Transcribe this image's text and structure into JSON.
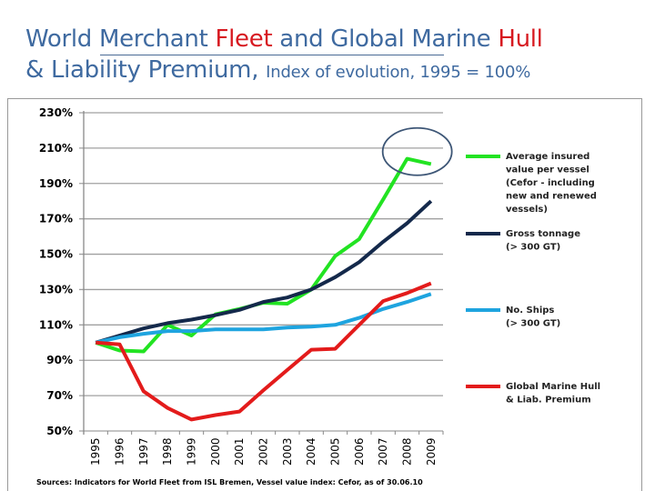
{
  "header": {
    "title_line1_parts": [
      "World Merchant ",
      "Fleet",
      " and Global Marine ",
      "Hull"
    ],
    "title_line2": "& Liability Premium,",
    "subtitle": "Index of evolution, 1995 = 100%"
  },
  "chart_data": {
    "type": "line",
    "title": "",
    "xlabel": "",
    "ylabel": "",
    "x": [
      "1995",
      "1996",
      "1997",
      "1998",
      "1999",
      "2000",
      "2001",
      "2002",
      "2003",
      "2004",
      "2005",
      "2006",
      "2007",
      "2008",
      "2009"
    ],
    "ylim": [
      50,
      230
    ],
    "yticks": [
      50,
      70,
      90,
      110,
      130,
      150,
      170,
      190,
      210,
      230
    ],
    "ytick_labels": [
      "50%",
      "70%",
      "90%",
      "110%",
      "130%",
      "150%",
      "170%",
      "190%",
      "210%",
      "230%"
    ],
    "grid": true,
    "legend_position": "right",
    "series": [
      {
        "name": "Average insured value per vessel (Cefor - including new and renewed vessels)",
        "legend_lines": [
          "Average insured",
          "value per vessel",
          "(Cefor - including",
          "new and renewed",
          "vessels)"
        ],
        "color": "#22e322",
        "values": [
          100,
          95.5,
          95,
          110,
          104,
          116,
          119,
          122.5,
          122,
          130,
          149,
          158.5,
          181,
          204,
          201
        ]
      },
      {
        "name": "Gross tonnage (> 300 GT)",
        "legend_lines": [
          "Gross tonnage",
          "(> 300 GT)"
        ],
        "color": "#14294b",
        "values": [
          100,
          104,
          108,
          111,
          113,
          115.5,
          118.5,
          123,
          125.5,
          130,
          137,
          145.5,
          157,
          167.5,
          180
        ]
      },
      {
        "name": "No. Ships (> 300 GT)",
        "legend_lines": [
          "No. Ships",
          "(> 300 GT)"
        ],
        "color": "#1ea4df",
        "values": [
          100,
          103,
          105,
          106.5,
          106.5,
          107.5,
          107.5,
          107.5,
          108.5,
          109,
          110,
          114,
          119,
          123,
          127.5
        ]
      },
      {
        "name": "Global Marine Hull & Liab. Premium",
        "legend_lines": [
          "Global Marine Hull",
          "& Liab. Premium"
        ],
        "color": "#e31b1b",
        "values": [
          100,
          99,
          72.5,
          63,
          56.5,
          59,
          61,
          73,
          84.5,
          96,
          96.5,
          110,
          123.5,
          128,
          133.5
        ]
      }
    ],
    "annotation": {
      "type": "ellipse",
      "around": [
        "2008",
        "2009"
      ],
      "series": "Average insured value per vessel (Cefor - including new and renewed vessels)",
      "color": "#3d5676"
    },
    "source": "Sources: Indicators for World Fleet from ISL Bremen, Vessel value index: Cefor, as of 30.06.10"
  }
}
